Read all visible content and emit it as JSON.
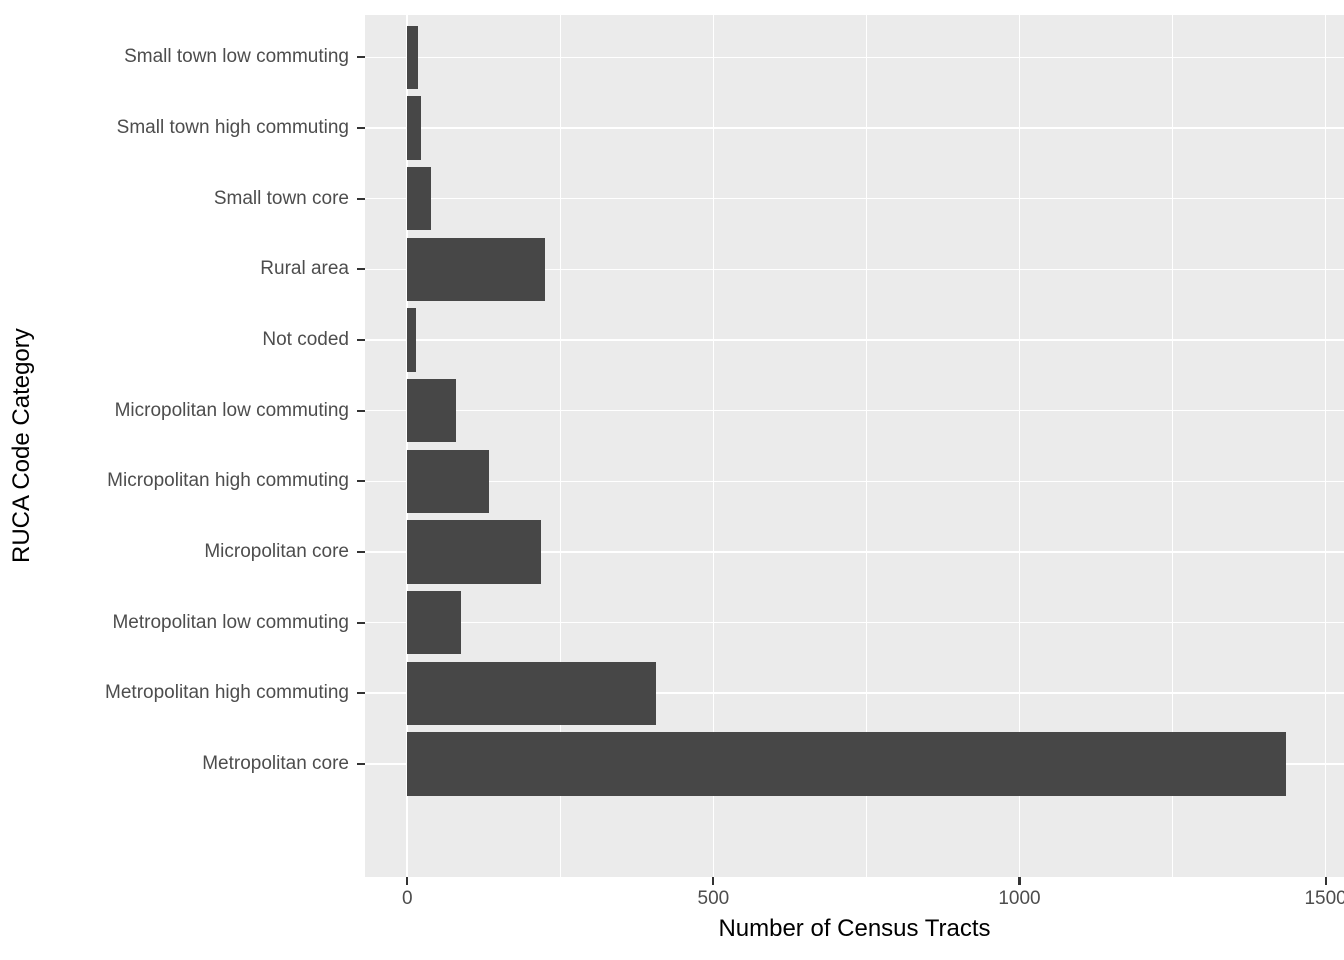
{
  "chart_data": {
    "type": "bar",
    "orientation": "horizontal",
    "title": "",
    "xlabel": "Number of Census Tracts",
    "ylabel": "RUCA Code Category",
    "categories_top_to_bottom": [
      "Small town low commuting",
      "Small town high commuting",
      "Small town core",
      "Rural area",
      "Not coded",
      "Micropolitan low commuting",
      "Micropolitan high commuting",
      "Micropolitan core",
      "Metropolitan low commuting",
      "Metropolitan high commuting",
      "Metropolitan core"
    ],
    "values": [
      18,
      23,
      39,
      225,
      14,
      80,
      133,
      219,
      88,
      407,
      1435
    ],
    "x_ticks": [
      0,
      500,
      1000,
      1500
    ],
    "x_minor_gridlines": [
      250,
      750,
      1250
    ],
    "x_range_displayed": [
      -69,
      1530
    ],
    "grid": true,
    "legend_position": "none",
    "colors": {
      "bar_fill": "#474747",
      "panel_background": "#EBEBEB",
      "gridline": "#FFFFFF",
      "axis_text": "#4D4D4D",
      "axis_title": "#000000",
      "tick_mark": "#333333",
      "page_background": "#FFFFFF"
    }
  }
}
